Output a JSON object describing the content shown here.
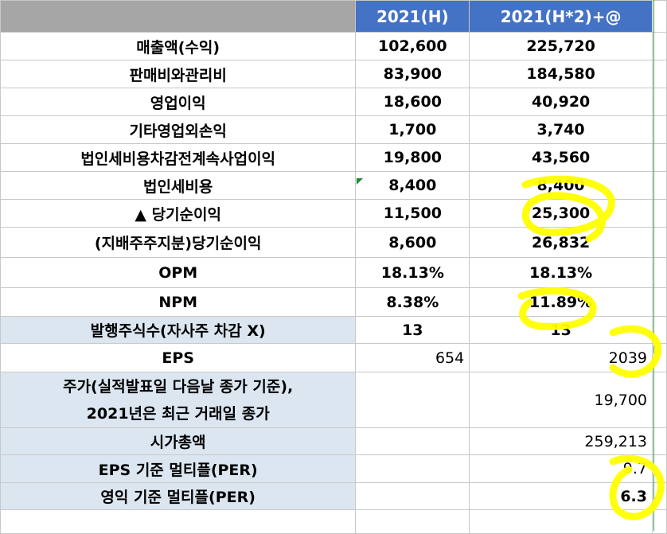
{
  "header": {
    "col1": "2021(H)",
    "col2": "2021(H*2)+@"
  },
  "rows": [
    {
      "label": "매출액(수익)",
      "v1": "102,600",
      "v2": "225,720"
    },
    {
      "label": "판매비와관리비",
      "v1": "83,900",
      "v2": "184,580"
    },
    {
      "label": "영업이익",
      "v1": "18,600",
      "v2": "40,920"
    },
    {
      "label": "기타영업외손익",
      "v1": "1,700",
      "v2": "3,740"
    },
    {
      "label": "법인세비용차감전계속사업이익",
      "v1": "19,800",
      "v2": "43,560"
    },
    {
      "label": "법인세비용",
      "v1": "8,400",
      "v2": "8,400"
    },
    {
      "label": "▲ 당기순이익",
      "v1": "11,500",
      "v2": "25,300"
    },
    {
      "label": "(지배주주지분)당기순이익",
      "v1": "8,600",
      "v2": "26,832"
    },
    {
      "label": "OPM",
      "v1": "18.13%",
      "v2": "18.13%"
    },
    {
      "label": "NPM",
      "v1": "8.38%",
      "v2": "11.89%"
    },
    {
      "label": "발행주식수(자사주 차감 X)",
      "v1": "13",
      "v2": "13"
    },
    {
      "label": "EPS",
      "v1": "654",
      "v2": "2039"
    },
    {
      "label": "주가(실적발표일 다음날 종가 기준),\n2021년은 최근 거래일 종가",
      "v1": "",
      "v2": "19,700"
    },
    {
      "label": "시가총액",
      "v1": "",
      "v2": "259,213"
    },
    {
      "label": "EPS 기준 멀티플(PER)",
      "v1": "",
      "v2": "9.7"
    },
    {
      "label": "영익 기준 멀티플(PER)",
      "v1": "",
      "v2": "6.3"
    }
  ],
  "colors": {
    "header_blue": "#4472c4",
    "label_blue": "#dce6f1",
    "highlighter": "#ffff00"
  }
}
